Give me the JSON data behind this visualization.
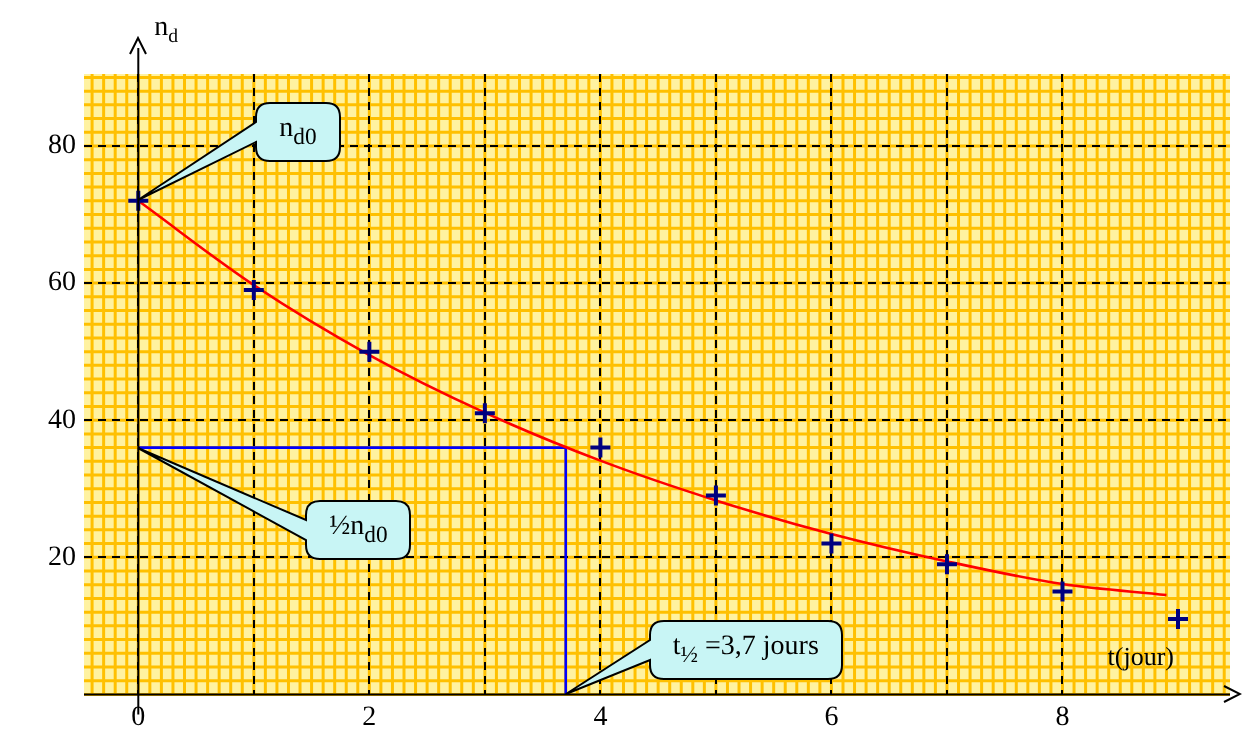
{
  "chart_data": {
    "type": "scatter",
    "xlabel": "t(jour)",
    "ylabel": "n$_{d}$",
    "xlim": [
      -0.47,
      9.45
    ],
    "ylim": [
      0,
      90.5
    ],
    "xticks": [
      0,
      {
        "value": 1,
        "label": null
      },
      2,
      {
        "value": 3,
        "label": null
      },
      4,
      {
        "value": 5,
        "label": null
      },
      6,
      {
        "value": 7,
        "label": null
      },
      8
    ],
    "yticks": [
      20,
      40,
      60,
      80
    ],
    "grid": true,
    "legend": false,
    "marker": "cross",
    "series": [
      {
        "color": "#000080",
        "x": [
          0,
          1,
          2,
          3,
          4,
          5,
          6,
          7,
          8,
          9
        ],
        "values": [
          72,
          59,
          50,
          41,
          36,
          29,
          22,
          19,
          15,
          11
        ]
      },
      {
        "type": "line",
        "color": "#ff0000",
        "x": [
          0,
          1,
          2,
          3,
          4,
          5,
          6,
          7,
          8,
          8.9
        ],
        "values": [
          72,
          59.7,
          49.5,
          41.1,
          34.1,
          28.3,
          23.4,
          19.4,
          16.1,
          14.5
        ],
        "marker": "none"
      },
      {
        "type": "line",
        "color": "#0000ff",
        "x": [
          0,
          3.7,
          3.7
        ],
        "values": [
          36,
          36,
          0
        ],
        "marker": "none"
      }
    ],
    "annotations": [
      "n$_{d0}$",
      "½n$_{d0}$",
      "t$_{½}$ =3,7 jours"
    ]
  }
}
